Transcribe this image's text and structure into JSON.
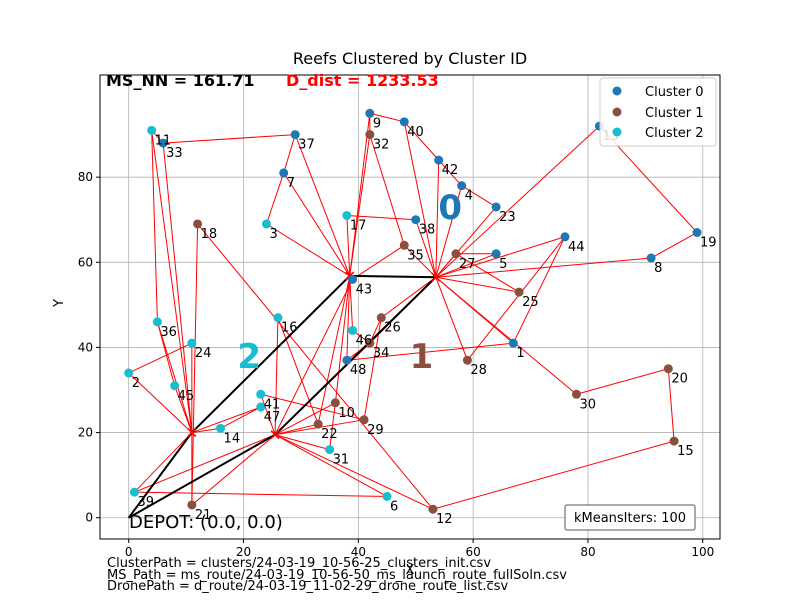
{
  "chart_data": {
    "type": "scatter",
    "title": "Reefs Clustered by Cluster ID",
    "xlabel": "X",
    "ylabel": "Y",
    "xlim": [
      -5,
      103
    ],
    "ylim": [
      -5,
      104
    ],
    "xticks": [
      0,
      20,
      40,
      60,
      80,
      100
    ],
    "yticks": [
      0,
      20,
      40,
      60,
      80
    ],
    "grid": true,
    "legend_position": "top-right",
    "ms_nn_label": "MS_NN = 161.71",
    "d_dist_label": "D_dist = 1233.53",
    "depot_label": "DEPOT: (0.0, 0.0)",
    "kmeans_label": "kMeansIters: 100",
    "series": [
      {
        "name": "Cluster 0",
        "color": "#1f77b4"
      },
      {
        "name": "Cluster 1",
        "color": "#8c4e3e"
      },
      {
        "name": "Cluster 2",
        "color": "#17becf"
      }
    ],
    "cluster_labels": [
      {
        "text": "0",
        "x": 56,
        "y": 73,
        "color": "#1f77b4"
      },
      {
        "text": "1",
        "x": 51,
        "y": 38,
        "color": "#8c4e3e"
      },
      {
        "text": "2",
        "x": 21,
        "y": 38,
        "color": "#17becf"
      }
    ],
    "points": [
      {
        "id": "1",
        "x": 67,
        "y": 41,
        "c": 0
      },
      {
        "id": "2",
        "x": 0,
        "y": 34,
        "c": 2
      },
      {
        "id": "3",
        "x": 24,
        "y": 69,
        "c": 2
      },
      {
        "id": "4",
        "x": 58,
        "y": 78,
        "c": 0
      },
      {
        "id": "5",
        "x": 64,
        "y": 62,
        "c": 0
      },
      {
        "id": "6",
        "x": 45,
        "y": 5,
        "c": 2
      },
      {
        "id": "7",
        "x": 27,
        "y": 81,
        "c": 0
      },
      {
        "id": "8",
        "x": 91,
        "y": 61,
        "c": 0
      },
      {
        "id": "9",
        "x": 42,
        "y": 95,
        "c": 0
      },
      {
        "id": "10",
        "x": 36,
        "y": 27,
        "c": 1
      },
      {
        "id": "11",
        "x": 4,
        "y": 91,
        "c": 2
      },
      {
        "id": "12",
        "x": 53,
        "y": 2,
        "c": 1
      },
      {
        "id": "13",
        "x": 82,
        "y": 92,
        "c": 0
      },
      {
        "id": "14",
        "x": 16,
        "y": 21,
        "c": 2
      },
      {
        "id": "15",
        "x": 95,
        "y": 18,
        "c": 1
      },
      {
        "id": "16",
        "x": 26,
        "y": 47,
        "c": 2
      },
      {
        "id": "17",
        "x": 38,
        "y": 71,
        "c": 2
      },
      {
        "id": "18",
        "x": 12,
        "y": 69,
        "c": 1
      },
      {
        "id": "19",
        "x": 99,
        "y": 67,
        "c": 0
      },
      {
        "id": "20",
        "x": 94,
        "y": 35,
        "c": 1
      },
      {
        "id": "21",
        "x": 11,
        "y": 3,
        "c": 1
      },
      {
        "id": "22",
        "x": 33,
        "y": 22,
        "c": 1
      },
      {
        "id": "23",
        "x": 64,
        "y": 73,
        "c": 0
      },
      {
        "id": "24",
        "x": 11,
        "y": 41,
        "c": 2
      },
      {
        "id": "25",
        "x": 68,
        "y": 53,
        "c": 1
      },
      {
        "id": "26",
        "x": 44,
        "y": 47,
        "c": 1
      },
      {
        "id": "27",
        "x": 57,
        "y": 62,
        "c": 1
      },
      {
        "id": "28",
        "x": 59,
        "y": 37,
        "c": 1
      },
      {
        "id": "29",
        "x": 41,
        "y": 23,
        "c": 1
      },
      {
        "id": "30",
        "x": 78,
        "y": 29,
        "c": 1
      },
      {
        "id": "31",
        "x": 35,
        "y": 16,
        "c": 2
      },
      {
        "id": "32",
        "x": 42,
        "y": 90,
        "c": 1
      },
      {
        "id": "33",
        "x": 6,
        "y": 88,
        "c": 0
      },
      {
        "id": "34",
        "x": 42,
        "y": 41,
        "c": 1
      },
      {
        "id": "35",
        "x": 48,
        "y": 64,
        "c": 1
      },
      {
        "id": "36",
        "x": 5,
        "y": 46,
        "c": 2
      },
      {
        "id": "37",
        "x": 29,
        "y": 90,
        "c": 0
      },
      {
        "id": "38",
        "x": 50,
        "y": 70,
        "c": 0
      },
      {
        "id": "39",
        "x": 1,
        "y": 6,
        "c": 2
      },
      {
        "id": "40",
        "x": 48,
        "y": 93,
        "c": 0
      },
      {
        "id": "41",
        "x": 23,
        "y": 29,
        "c": 2
      },
      {
        "id": "42",
        "x": 54,
        "y": 84,
        "c": 0
      },
      {
        "id": "43",
        "x": 39,
        "y": 56,
        "c": 0
      },
      {
        "id": "44",
        "x": 76,
        "y": 66,
        "c": 0
      },
      {
        "id": "45",
        "x": 8,
        "y": 31,
        "c": 2
      },
      {
        "id": "46",
        "x": 39,
        "y": 44,
        "c": 2
      },
      {
        "id": "47",
        "x": 23,
        "y": 26,
        "c": 2
      },
      {
        "id": "48",
        "x": 38,
        "y": 37,
        "c": 0
      }
    ],
    "centres": [
      {
        "name": "c0",
        "x": 53.5,
        "y": 56.5
      },
      {
        "name": "c1",
        "x": 25.5,
        "y": 19.5
      },
      {
        "name": "c2",
        "x": 11,
        "y": 20
      },
      {
        "name": "c3",
        "x": 38.5,
        "y": 56.8
      }
    ],
    "ms_path": [
      [
        0,
        0
      ],
      [
        11,
        20
      ],
      [
        38.5,
        56.8
      ],
      [
        53.5,
        56.5
      ],
      [
        25.5,
        19.5
      ],
      [
        0,
        0
      ]
    ],
    "drone_routes": [
      [
        "c2",
        "39"
      ],
      [
        "c2",
        "2"
      ],
      [
        "c2",
        "36"
      ],
      [
        "c2",
        "11"
      ],
      [
        "c2",
        "33"
      ],
      [
        "c2",
        "21"
      ],
      [
        "c2",
        "14"
      ],
      [
        "c2",
        "47"
      ],
      [
        "c2",
        "24"
      ],
      [
        "c2",
        "45"
      ],
      [
        "c1",
        "41"
      ],
      [
        "c1",
        "16"
      ],
      [
        "c1",
        "31"
      ],
      [
        "c1",
        "10"
      ],
      [
        "c1",
        "29"
      ],
      [
        "c1",
        "12"
      ],
      [
        "c1",
        "6"
      ],
      [
        "c1",
        "21"
      ],
      [
        "c1",
        "39"
      ],
      [
        "c1",
        "22"
      ],
      [
        "c1",
        "43"
      ],
      [
        "c1",
        "34"
      ],
      [
        "c3",
        "17"
      ],
      [
        "c3",
        "37"
      ],
      [
        "c3",
        "7"
      ],
      [
        "c3",
        "3"
      ],
      [
        "c3",
        "32"
      ],
      [
        "c3",
        "9"
      ],
      [
        "c3",
        "46"
      ],
      [
        "c3",
        "48"
      ],
      [
        "c3",
        "22"
      ],
      [
        "c3",
        "10"
      ],
      [
        "c3",
        "43"
      ],
      [
        "c0",
        "4"
      ],
      [
        "c0",
        "23"
      ],
      [
        "c0",
        "42"
      ],
      [
        "c0",
        "13"
      ],
      [
        "c0",
        "8"
      ],
      [
        "c0",
        "5"
      ],
      [
        "c0",
        "27"
      ],
      [
        "c0",
        "25"
      ],
      [
        "c0",
        "30"
      ],
      [
        "c0",
        "1"
      ],
      [
        "c0",
        "44"
      ],
      [
        "c0",
        "28"
      ],
      [
        "c0",
        "26"
      ],
      [
        "c0",
        "35"
      ],
      [
        "c0",
        "38"
      ],
      [
        "c0",
        "40"
      ],
      [
        "c0",
        "34"
      ],
      [
        "18",
        "12"
      ],
      [
        "18",
        "21"
      ],
      [
        "11",
        "36"
      ],
      [
        "36",
        "45"
      ],
      [
        "2",
        "24"
      ],
      [
        "3",
        "7"
      ],
      [
        "7",
        "37"
      ],
      [
        "33",
        "37"
      ],
      [
        "16",
        "22"
      ],
      [
        "26",
        "29"
      ],
      [
        "41",
        "29"
      ],
      [
        "47",
        "14"
      ],
      [
        "32",
        "9"
      ],
      [
        "9",
        "40"
      ],
      [
        "40",
        "42"
      ],
      [
        "42",
        "4"
      ],
      [
        "35",
        "32"
      ],
      [
        "38",
        "17"
      ],
      [
        "8",
        "19"
      ],
      [
        "19",
        "13"
      ],
      [
        "20",
        "15"
      ],
      [
        "20",
        "30"
      ],
      [
        "44",
        "1"
      ],
      [
        "1",
        "48"
      ],
      [
        "44",
        "28"
      ],
      [
        "34",
        "26"
      ],
      [
        "15",
        "12"
      ],
      [
        "6",
        "39"
      ],
      [
        "23",
        "4"
      ],
      [
        "5",
        "27"
      ],
      [
        "25",
        "27"
      ],
      [
        "10",
        "31"
      ],
      [
        "46",
        "34"
      ],
      [
        "48",
        "34"
      ],
      [
        "35",
        "43"
      ],
      [
        "33",
        "11"
      ]
    ]
  },
  "captions": [
    "ClusterPath = clusters/24-03-19_10-56-25_clusters_init.csv",
    "MS_Path = ms_route/24-03-19_10-56-50_ms_launch_route_fullSoln.csv",
    "DronePath = d_route/24-03-19_11-02-29_drone_route_list.csv"
  ]
}
